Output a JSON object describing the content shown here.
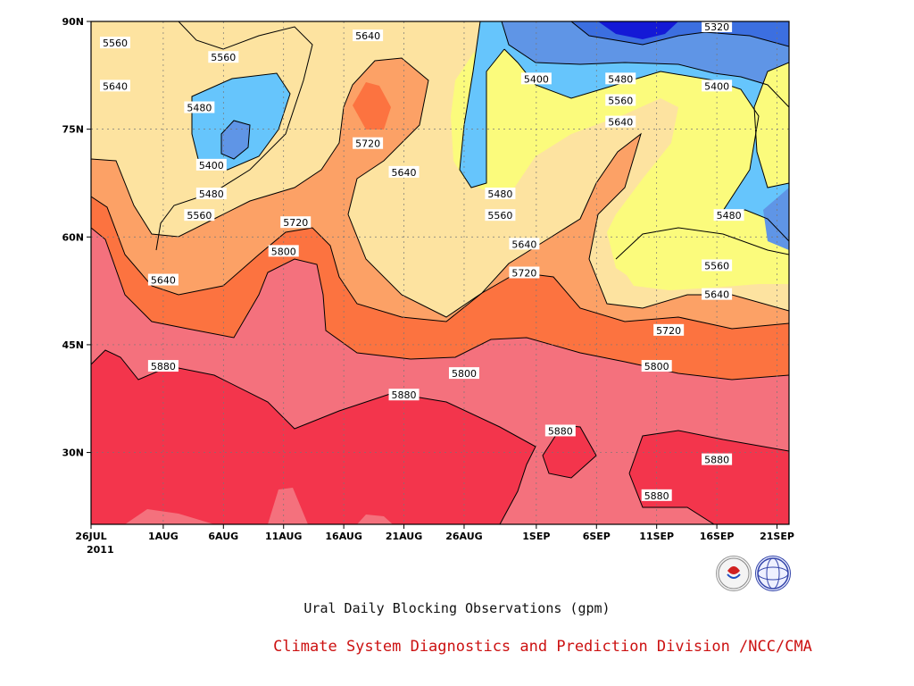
{
  "chart_data": {
    "type": "heatmap",
    "title": "",
    "subtitle": "Ural Daily Blocking Observations (gpm)",
    "xlabel": "",
    "ylabel": "",
    "x_ticks": [
      "26JUL",
      "1AUG",
      "6AUG",
      "11AUG",
      "16AUG",
      "21AUG",
      "26AUG",
      "1SEP",
      "6SEP",
      "11SEP",
      "16SEP",
      "21SEP"
    ],
    "x_year_label": "2011",
    "y_ticks": [
      "30N",
      "45N",
      "60N",
      "75N",
      "90N"
    ],
    "ylim": [
      20,
      90
    ],
    "xlim": [
      "2011-07-26",
      "2011-09-22"
    ],
    "grid": true,
    "contour_levels": [
      5320,
      5400,
      5480,
      5560,
      5640,
      5720,
      5800,
      5880
    ],
    "fill_colors": {
      "lt5320": "#1419d6",
      "5320-5400": "#3c6fe0",
      "5400-5480": "#5f95e6",
      "5480-5560": "#66c5fc",
      "5560-5640": "#fbfb7c",
      "5640-5720": "#fde3a0",
      "5720-5800": "#fca166",
      "5800-5880": "#fc7340",
      "5880-5960": "#f4717d",
      "ge5960": "#f3354c"
    },
    "contour_labels": [
      {
        "date": "2011-07-28",
        "lat": 87,
        "value": "5560"
      },
      {
        "date": "2011-07-28",
        "lat": 81,
        "value": "5640"
      },
      {
        "date": "2011-08-04",
        "lat": 78,
        "value": "5480"
      },
      {
        "date": "2011-08-06",
        "lat": 85,
        "value": "5560"
      },
      {
        "date": "2011-08-05",
        "lat": 70,
        "value": "5400"
      },
      {
        "date": "2011-08-05",
        "lat": 66,
        "value": "5480"
      },
      {
        "date": "2011-08-04",
        "lat": 63,
        "value": "5560"
      },
      {
        "date": "2011-08-01",
        "lat": 54,
        "value": "5640"
      },
      {
        "date": "2011-08-12",
        "lat": 62,
        "value": "5720"
      },
      {
        "date": "2011-08-11",
        "lat": 58,
        "value": "5800"
      },
      {
        "date": "2011-08-18",
        "lat": 88,
        "value": "5640"
      },
      {
        "date": "2011-08-18",
        "lat": 73,
        "value": "5720"
      },
      {
        "date": "2011-08-21",
        "lat": 69,
        "value": "5640"
      },
      {
        "date": "2011-08-01",
        "lat": 42,
        "value": "5880"
      },
      {
        "date": "2011-08-21",
        "lat": 38,
        "value": "5880"
      },
      {
        "date": "2011-08-26",
        "lat": 41,
        "value": "5800"
      },
      {
        "date": "2011-08-29",
        "lat": 66,
        "value": "5480"
      },
      {
        "date": "2011-08-29",
        "lat": 63,
        "value": "5560"
      },
      {
        "date": "2011-08-31",
        "lat": 59,
        "value": "5640"
      },
      {
        "date": "2011-08-31",
        "lat": 55,
        "value": "5720"
      },
      {
        "date": "2011-09-01",
        "lat": 82,
        "value": "5400"
      },
      {
        "date": "2011-09-03",
        "lat": 33,
        "value": "5880"
      },
      {
        "date": "2011-09-08",
        "lat": 82,
        "value": "5480"
      },
      {
        "date": "2011-09-08",
        "lat": 79,
        "value": "5560"
      },
      {
        "date": "2011-09-08",
        "lat": 76,
        "value": "5640"
      },
      {
        "date": "2011-09-12",
        "lat": 47,
        "value": "5720"
      },
      {
        "date": "2011-09-11",
        "lat": 42,
        "value": "5800"
      },
      {
        "date": "2011-09-11",
        "lat": 24,
        "value": "5880"
      },
      {
        "date": "2011-09-16",
        "lat": 90,
        "value": "5320"
      },
      {
        "date": "2011-09-16",
        "lat": 81,
        "value": "5400"
      },
      {
        "date": "2011-09-17",
        "lat": 63,
        "value": "5480"
      },
      {
        "date": "2011-09-16",
        "lat": 56,
        "value": "5560"
      },
      {
        "date": "2011-09-16",
        "lat": 52,
        "value": "5640"
      },
      {
        "date": "2011-09-16",
        "lat": 29,
        "value": "5880"
      }
    ]
  },
  "footer": {
    "credit": "Climate System Diagnostics and Prediction Division /NCC/CMA",
    "logos": [
      "BCC",
      "NCC"
    ]
  },
  "icons": [
    "bcc-logo-icon",
    "ncc-logo-icon"
  ]
}
